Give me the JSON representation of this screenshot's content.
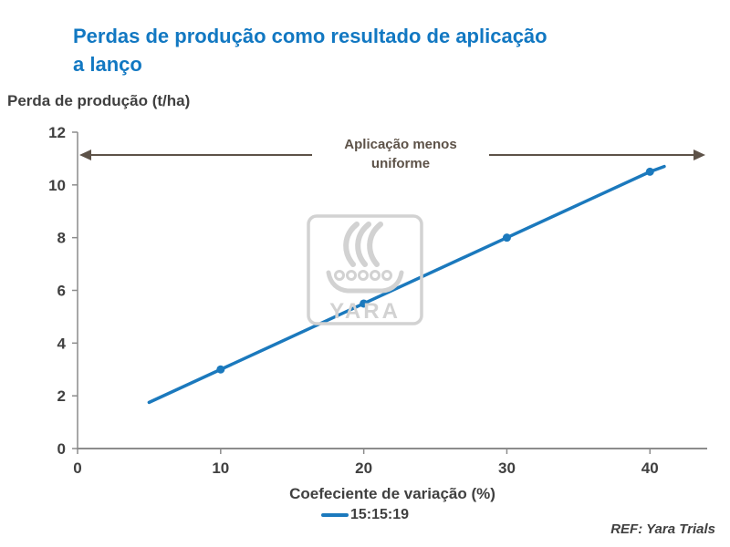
{
  "header": {
    "title_lines": [
      "Perdas de produção como resultado de aplicação",
      "a lanço"
    ]
  },
  "chart_data": {
    "type": "line",
    "title": "Perdas de produção como resultado de aplicação a lanço",
    "y_axis_title": "Perda de produção (t/ha)",
    "x_axis_title": "Coefeciente de variação (%)",
    "xlim": [
      0,
      44
    ],
    "ylim": [
      0,
      12
    ],
    "x_ticks": [
      0,
      10,
      20,
      30,
      40
    ],
    "y_ticks": [
      0,
      2,
      4,
      6,
      8,
      10,
      12
    ],
    "grid": false,
    "legend_position": "bottom-center",
    "series": [
      {
        "name": "15:15:19",
        "color": "#1b79bd",
        "x": [
          5,
          10,
          20,
          30,
          40,
          41
        ],
        "y": [
          1.75,
          3,
          5.5,
          8,
          10.5,
          10.7
        ],
        "marker_x": [
          10,
          20,
          30,
          40
        ],
        "marker_y": [
          3,
          5.5,
          8,
          10.5
        ]
      }
    ],
    "annotation": {
      "text_lines": [
        "Aplicação menos",
        "uniforme"
      ],
      "arrow": "double-headed-horizontal",
      "y_value": 11.2
    }
  },
  "watermark": {
    "text": "YARA",
    "icon": "yara-ship-logo"
  },
  "footer": {
    "ref": "REF: Yara Trials"
  },
  "colors": {
    "title": "#1278c2",
    "series": "#1b79bd",
    "axis_text": "#404040",
    "annotation": "#5d5248",
    "watermark": "#d2d2d2",
    "axis_line": "#8c8c8c"
  }
}
